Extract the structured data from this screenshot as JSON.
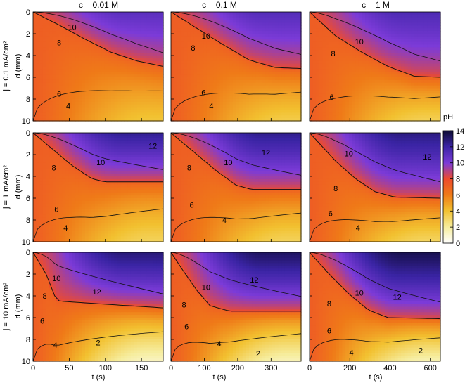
{
  "chart_data": {
    "type": "heatmap",
    "colorbar": {
      "title": "pH",
      "range": [
        0,
        14
      ],
      "ticks": [
        "0",
        "2",
        "4",
        "6",
        "8",
        "10",
        "12",
        "14"
      ]
    },
    "column_titles": [
      "c = 0.01 M",
      "c = 0.1 M",
      "c = 1 M"
    ],
    "row_titles": [
      "j = 0.1 mA/cm²",
      "j = 1 mA/cm²",
      "j = 10 mA/cm²"
    ],
    "ylabel": "d (mm)",
    "xlabel": "t (s)",
    "ylim": [
      0,
      10
    ],
    "yticks": [
      "0",
      "2",
      "4",
      "6",
      "8",
      "10"
    ],
    "columns": [
      {
        "xlim": [
          0,
          180
        ],
        "xticks": [
          {
            "v": 0,
            "label": "0"
          },
          {
            "v": 50,
            "label": "50"
          },
          {
            "v": 100,
            "label": "100"
          },
          {
            "v": 150,
            "label": "150"
          }
        ]
      },
      {
        "xlim": [
          0,
          390
        ],
        "xticks": [
          {
            "v": 0,
            "label": "0"
          },
          {
            "v": 100,
            "label": "100"
          },
          {
            "v": 200,
            "label": "200"
          },
          {
            "v": 300,
            "label": "300"
          }
        ]
      },
      {
        "xlim": [
          0,
          650
        ],
        "xticks": [
          {
            "v": 0,
            "label": "0"
          },
          {
            "v": 200,
            "label": "200"
          },
          {
            "v": 400,
            "label": "400"
          },
          {
            "v": 600,
            "label": "600"
          }
        ]
      }
    ],
    "panels": [
      {
        "row": 0,
        "col": 0,
        "front": [
          [
            0,
            0
          ],
          [
            0.2,
            1.2
          ],
          [
            0.4,
            2.5
          ],
          [
            0.6,
            3.7
          ],
          [
            0.8,
            4.5
          ],
          [
            1,
            5
          ]
        ],
        "top_level": 11,
        "bottom_level": 3.8,
        "labels": [
          {
            "text": "10",
            "u": 0.3,
            "v": 1.4
          },
          {
            "text": "8",
            "u": 0.2,
            "v": 2.8
          },
          {
            "text": "6",
            "u": 0.2,
            "v": 7.5
          },
          {
            "text": "4",
            "u": 0.27,
            "v": 8.6
          }
        ]
      },
      {
        "row": 0,
        "col": 1,
        "front": [
          [
            0,
            0
          ],
          [
            0.2,
            1.5
          ],
          [
            0.4,
            3
          ],
          [
            0.6,
            4.4
          ],
          [
            0.8,
            5.1
          ],
          [
            1,
            5.2
          ]
        ],
        "top_level": 11.2,
        "bottom_level": 3.5,
        "labels": [
          {
            "text": "10",
            "u": 0.27,
            "v": 2.2
          },
          {
            "text": "8",
            "u": 0.17,
            "v": 3.3
          },
          {
            "text": "6",
            "u": 0.25,
            "v": 7.4
          },
          {
            "text": "4",
            "u": 0.31,
            "v": 8.6
          }
        ]
      },
      {
        "row": 0,
        "col": 2,
        "front": [
          [
            0,
            0
          ],
          [
            0.2,
            2.2
          ],
          [
            0.4,
            3.7
          ],
          [
            0.6,
            5
          ],
          [
            0.8,
            5.9
          ],
          [
            1,
            6
          ]
        ],
        "top_level": 11.4,
        "bottom_level": 3.3,
        "labels": [
          {
            "text": "10",
            "u": 0.38,
            "v": 2.7
          },
          {
            "text": "8",
            "u": 0.18,
            "v": 3.8
          },
          {
            "text": "6",
            "u": 0.17,
            "v": 7.8
          }
        ]
      },
      {
        "row": 1,
        "col": 0,
        "front": [
          [
            0,
            0
          ],
          [
            0.15,
            1.5
          ],
          [
            0.3,
            3
          ],
          [
            0.45,
            4.2
          ],
          [
            0.55,
            4.5
          ],
          [
            1,
            4.5
          ]
        ],
        "top_level": 12.3,
        "bottom_level": 3.2,
        "labels": [
          {
            "text": "12",
            "u": 0.92,
            "v": 1.2
          },
          {
            "text": "10",
            "u": 0.52,
            "v": 2.7
          },
          {
            "text": "8",
            "u": 0.16,
            "v": 3.2
          },
          {
            "text": "6",
            "u": 0.18,
            "v": 7.0
          },
          {
            "text": "4",
            "u": 0.25,
            "v": 8.7
          }
        ]
      },
      {
        "row": 1,
        "col": 1,
        "front": [
          [
            0,
            0
          ],
          [
            0.2,
            2
          ],
          [
            0.35,
            3.5
          ],
          [
            0.5,
            4.8
          ],
          [
            0.62,
            5.2
          ],
          [
            1,
            5.2
          ]
        ],
        "top_level": 12.4,
        "bottom_level": 3.2,
        "labels": [
          {
            "text": "12",
            "u": 0.73,
            "v": 1.8
          },
          {
            "text": "10",
            "u": 0.44,
            "v": 2.7
          },
          {
            "text": "8",
            "u": 0.14,
            "v": 3.2
          },
          {
            "text": "6",
            "u": 0.16,
            "v": 6.6
          },
          {
            "text": "4",
            "u": 0.41,
            "v": 8.0
          }
        ]
      },
      {
        "row": 1,
        "col": 2,
        "front": [
          [
            0,
            0
          ],
          [
            0.2,
            2.6
          ],
          [
            0.35,
            4.2
          ],
          [
            0.5,
            5.4
          ],
          [
            0.65,
            5.9
          ],
          [
            1,
            6
          ]
        ],
        "top_level": 12.6,
        "bottom_level": 3.1,
        "labels": [
          {
            "text": "12",
            "u": 0.9,
            "v": 2.2
          },
          {
            "text": "10",
            "u": 0.3,
            "v": 1.9
          },
          {
            "text": "8",
            "u": 0.2,
            "v": 5.1
          },
          {
            "text": "6",
            "u": 0.16,
            "v": 7.4
          },
          {
            "text": "4",
            "u": 0.37,
            "v": 8.7
          }
        ]
      },
      {
        "row": 2,
        "col": 0,
        "front": [
          [
            0,
            0
          ],
          [
            0.1,
            2
          ],
          [
            0.18,
            4.4
          ],
          [
            0.22,
            4.5
          ],
          [
            0.6,
            4.8
          ],
          [
            1,
            5.1
          ]
        ],
        "top_level": 12.8,
        "bottom_level": 1.3,
        "labels": [
          {
            "text": "10",
            "u": 0.18,
            "v": 2.4
          },
          {
            "text": "12",
            "u": 0.49,
            "v": 3.6
          },
          {
            "text": "8",
            "u": 0.09,
            "v": 4.0
          },
          {
            "text": "6",
            "u": 0.07,
            "v": 6.3
          },
          {
            "text": "4",
            "u": 0.17,
            "v": 8.5
          },
          {
            "text": "2",
            "u": 0.5,
            "v": 8.3
          }
        ]
      },
      {
        "row": 2,
        "col": 1,
        "front": [
          [
            0,
            0
          ],
          [
            0.1,
            1.8
          ],
          [
            0.2,
            3.5
          ],
          [
            0.3,
            4.9
          ],
          [
            0.45,
            5.4
          ],
          [
            1,
            5.4
          ]
        ],
        "top_level": 13.2,
        "bottom_level": 1.5,
        "labels": [
          {
            "text": "12",
            "u": 0.64,
            "v": 2.5
          },
          {
            "text": "10",
            "u": 0.27,
            "v": 3.2
          },
          {
            "text": "8",
            "u": 0.1,
            "v": 4.8
          },
          {
            "text": "6",
            "u": 0.12,
            "v": 6.8
          },
          {
            "text": "4",
            "u": 0.37,
            "v": 8.4
          },
          {
            "text": "2",
            "u": 0.67,
            "v": 9.3
          }
        ]
      },
      {
        "row": 2,
        "col": 2,
        "front": [
          [
            0,
            0
          ],
          [
            0.15,
            2
          ],
          [
            0.3,
            3.8
          ],
          [
            0.45,
            5.3
          ],
          [
            0.6,
            6
          ],
          [
            1,
            6.1
          ]
        ],
        "top_level": 13.5,
        "bottom_level": 1.6,
        "labels": [
          {
            "text": "10",
            "u": 0.38,
            "v": 3.7
          },
          {
            "text": "12",
            "u": 0.67,
            "v": 4.1
          },
          {
            "text": "8",
            "u": 0.15,
            "v": 4.7
          },
          {
            "text": "6",
            "u": 0.15,
            "v": 7.2
          },
          {
            "text": "4",
            "u": 0.32,
            "v": 9.2
          },
          {
            "text": "2",
            "u": 0.85,
            "v": 9.0
          }
        ]
      }
    ]
  }
}
